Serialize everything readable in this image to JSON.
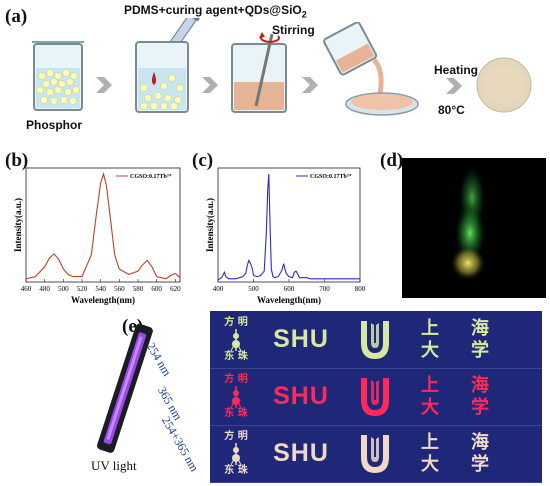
{
  "panel_a": {
    "label": "(a)",
    "formula_prefix": "PDMS+curing agent+QDs@SiO",
    "formula_subscript": "2",
    "stirring": "Stirring",
    "phosphor": "Phosphor",
    "heating": "Heating",
    "temperature": "80°C"
  },
  "panel_b": {
    "label": "(b)",
    "ylabel": "Intensity(a.u.)",
    "xlabel": "Wavelength(nm)",
    "legend": "CGSO:0.17Tb³⁺",
    "xticks": [
      "460",
      "480",
      "500",
      "520",
      "540",
      "560",
      "580",
      "600",
      "620"
    ],
    "color": "#b5442a"
  },
  "panel_c": {
    "label": "(c)",
    "ylabel": "Intensity(a.u.)",
    "xlabel": "Wavelength(nm)",
    "legend": "CGSO:0.17Tb³⁺",
    "xticks": [
      "400",
      "500",
      "600",
      "700",
      "800"
    ],
    "color": "#2b2bd0"
  },
  "panel_d": {
    "label": "(d)"
  },
  "panel_e": {
    "label": "(e)",
    "uv_light": "UV light",
    "rows": [
      {
        "caption": "254 nm",
        "shu": "SHU",
        "logo_top": "方  明",
        "logo_bottom": "东  珠",
        "shang": "上",
        "da": "大",
        "hai": "海",
        "xue": "学"
      },
      {
        "caption": "365 nm",
        "shu": "SHU",
        "logo_top": "方  明",
        "logo_bottom": "东  珠",
        "shang": "上",
        "da": "大",
        "hai": "海",
        "xue": "学"
      },
      {
        "caption": "254+365 nm",
        "shu": "SHU",
        "logo_top": "方  明",
        "logo_bottom": "东  珠",
        "shang": "上",
        "da": "大",
        "hai": "海",
        "xue": "学"
      }
    ],
    "row_colors": [
      "#d8e8a0",
      "#ff2a5a",
      "#f0d8c8"
    ]
  },
  "chart_data": [
    {
      "type": "line",
      "title": "",
      "xlabel": "Wavelength(nm)",
      "ylabel": "Intensity(a.u.)",
      "xlim": [
        460,
        625
      ],
      "series": [
        {
          "name": "CGSO:0.17Tb³⁺",
          "x": [
            460,
            470,
            480,
            485,
            490,
            495,
            500,
            505,
            510,
            520,
            530,
            535,
            540,
            543,
            546,
            550,
            555,
            560,
            570,
            580,
            585,
            590,
            595,
            600,
            610,
            615,
            620,
            625
          ],
          "y": [
            0.03,
            0.05,
            0.14,
            0.22,
            0.26,
            0.21,
            0.12,
            0.07,
            0.05,
            0.05,
            0.25,
            0.6,
            0.92,
            1.0,
            0.9,
            0.62,
            0.25,
            0.12,
            0.07,
            0.1,
            0.16,
            0.2,
            0.14,
            0.05,
            0.03,
            0.06,
            0.08,
            0.04
          ]
        }
      ]
    },
    {
      "type": "line",
      "title": "",
      "xlabel": "Wavelength(nm)",
      "ylabel": "Intensity(a.u.)",
      "xlim": [
        400,
        800
      ],
      "series": [
        {
          "name": "CGSO:0.17Tb³⁺",
          "x": [
            400,
            410,
            415,
            418,
            422,
            430,
            440,
            450,
            460,
            470,
            478,
            483,
            487,
            490,
            493,
            497,
            500,
            510,
            520,
            530,
            536,
            540,
            543,
            546,
            550,
            555,
            560,
            570,
            580,
            585,
            588,
            592,
            600,
            610,
            615,
            620,
            625,
            630,
            640,
            650,
            660,
            680,
            700,
            740,
            780,
            800
          ],
          "y": [
            0.02,
            0.04,
            0.07,
            0.09,
            0.05,
            0.03,
            0.03,
            0.03,
            0.04,
            0.05,
            0.08,
            0.16,
            0.2,
            0.18,
            0.16,
            0.12,
            0.06,
            0.05,
            0.06,
            0.1,
            0.45,
            0.85,
            1.0,
            0.62,
            0.12,
            0.05,
            0.04,
            0.05,
            0.11,
            0.17,
            0.13,
            0.08,
            0.05,
            0.04,
            0.09,
            0.1,
            0.07,
            0.04,
            0.04,
            0.04,
            0.03,
            0.03,
            0.03,
            0.03,
            0.03,
            0.03
          ]
        }
      ]
    }
  ]
}
